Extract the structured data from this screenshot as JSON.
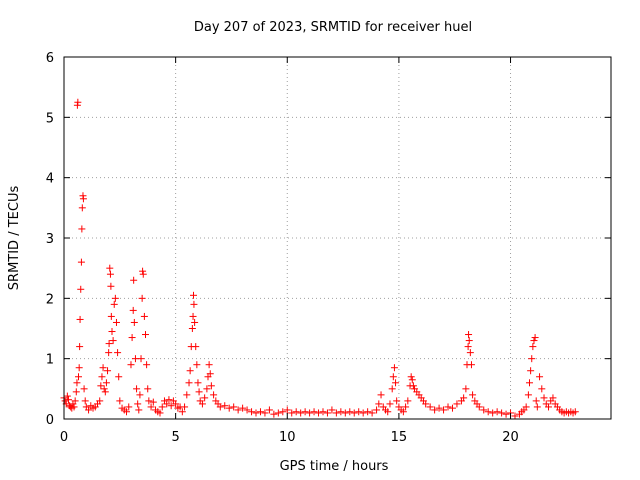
{
  "chart_data": {
    "type": "scatter",
    "title": "Day 207 of 2023, SRMTID for receiver huel",
    "xlabel": "GPS time / hours",
    "ylabel": "SRMTID / TECUs",
    "xlim": [
      0,
      24.5
    ],
    "ylim": [
      0,
      6
    ],
    "xticks": [
      0,
      5,
      10,
      15,
      20
    ],
    "yticks": [
      0,
      1,
      2,
      3,
      4,
      5,
      6
    ],
    "grid": true,
    "marker": "+",
    "color": "#ff0000",
    "series": [
      {
        "name": "SRMTID",
        "points": [
          [
            0.0,
            0.35
          ],
          [
            0.05,
            0.3
          ],
          [
            0.1,
            0.25
          ],
          [
            0.15,
            0.38
          ],
          [
            0.2,
            0.32
          ],
          [
            0.25,
            0.22
          ],
          [
            0.3,
            0.2
          ],
          [
            0.35,
            0.18
          ],
          [
            0.4,
            0.25
          ],
          [
            0.45,
            0.2
          ],
          [
            0.5,
            0.3
          ],
          [
            0.55,
            0.45
          ],
          [
            0.58,
            0.6
          ],
          [
            0.6,
            5.2
          ],
          [
            0.62,
            5.25
          ],
          [
            0.65,
            0.7
          ],
          [
            0.68,
            0.85
          ],
          [
            0.7,
            1.2
          ],
          [
            0.72,
            1.65
          ],
          [
            0.75,
            2.15
          ],
          [
            0.78,
            2.6
          ],
          [
            0.8,
            3.15
          ],
          [
            0.82,
            3.5
          ],
          [
            0.85,
            3.7
          ],
          [
            0.87,
            3.65
          ],
          [
            0.9,
            0.5
          ],
          [
            0.95,
            0.3
          ],
          [
            1.0,
            0.2
          ],
          [
            1.1,
            0.15
          ],
          [
            1.2,
            0.22
          ],
          [
            1.3,
            0.18
          ],
          [
            1.4,
            0.2
          ],
          [
            1.5,
            0.25
          ],
          [
            1.6,
            0.3
          ],
          [
            1.65,
            0.55
          ],
          [
            1.7,
            0.7
          ],
          [
            1.75,
            0.85
          ],
          [
            1.8,
            0.5
          ],
          [
            1.85,
            0.45
          ],
          [
            1.9,
            0.6
          ],
          [
            1.95,
            0.8
          ],
          [
            2.0,
            1.1
          ],
          [
            2.02,
            1.25
          ],
          [
            2.05,
            2.5
          ],
          [
            2.08,
            2.4
          ],
          [
            2.1,
            2.2
          ],
          [
            2.12,
            1.7
          ],
          [
            2.15,
            1.45
          ],
          [
            2.2,
            1.3
          ],
          [
            2.25,
            1.9
          ],
          [
            2.3,
            2.0
          ],
          [
            2.35,
            1.6
          ],
          [
            2.4,
            1.1
          ],
          [
            2.45,
            0.7
          ],
          [
            2.5,
            0.3
          ],
          [
            2.6,
            0.18
          ],
          [
            2.7,
            0.15
          ],
          [
            2.8,
            0.12
          ],
          [
            2.9,
            0.2
          ],
          [
            3.0,
            0.9
          ],
          [
            3.05,
            1.35
          ],
          [
            3.1,
            1.8
          ],
          [
            3.12,
            2.3
          ],
          [
            3.15,
            1.6
          ],
          [
            3.2,
            1.0
          ],
          [
            3.25,
            0.5
          ],
          [
            3.3,
            0.25
          ],
          [
            3.35,
            0.15
          ],
          [
            3.4,
            0.4
          ],
          [
            3.45,
            1.0
          ],
          [
            3.5,
            2.0
          ],
          [
            3.52,
            2.45
          ],
          [
            3.55,
            2.4
          ],
          [
            3.6,
            1.7
          ],
          [
            3.65,
            1.4
          ],
          [
            3.7,
            0.9
          ],
          [
            3.75,
            0.5
          ],
          [
            3.8,
            0.3
          ],
          [
            3.9,
            0.2
          ],
          [
            4.0,
            0.28
          ],
          [
            4.1,
            0.15
          ],
          [
            4.2,
            0.12
          ],
          [
            4.3,
            0.1
          ],
          [
            4.4,
            0.2
          ],
          [
            4.5,
            0.3
          ],
          [
            4.6,
            0.25
          ],
          [
            4.7,
            0.32
          ],
          [
            4.8,
            0.22
          ],
          [
            4.9,
            0.3
          ],
          [
            5.0,
            0.25
          ],
          [
            5.1,
            0.18
          ],
          [
            5.2,
            0.2
          ],
          [
            5.3,
            0.12
          ],
          [
            5.4,
            0.2
          ],
          [
            5.5,
            0.4
          ],
          [
            5.6,
            0.6
          ],
          [
            5.65,
            0.8
          ],
          [
            5.7,
            1.2
          ],
          [
            5.75,
            1.5
          ],
          [
            5.78,
            1.7
          ],
          [
            5.8,
            2.05
          ],
          [
            5.82,
            1.9
          ],
          [
            5.85,
            1.6
          ],
          [
            5.9,
            1.2
          ],
          [
            5.95,
            0.9
          ],
          [
            6.0,
            0.6
          ],
          [
            6.05,
            0.45
          ],
          [
            6.1,
            0.3
          ],
          [
            6.2,
            0.25
          ],
          [
            6.3,
            0.35
          ],
          [
            6.4,
            0.5
          ],
          [
            6.45,
            0.7
          ],
          [
            6.5,
            0.9
          ],
          [
            6.55,
            0.75
          ],
          [
            6.6,
            0.55
          ],
          [
            6.7,
            0.4
          ],
          [
            6.8,
            0.3
          ],
          [
            6.9,
            0.25
          ],
          [
            7.0,
            0.2
          ],
          [
            7.2,
            0.22
          ],
          [
            7.4,
            0.18
          ],
          [
            7.6,
            0.2
          ],
          [
            7.8,
            0.15
          ],
          [
            8.0,
            0.18
          ],
          [
            8.2,
            0.15
          ],
          [
            8.4,
            0.12
          ],
          [
            8.6,
            0.1
          ],
          [
            8.8,
            0.12
          ],
          [
            9.0,
            0.1
          ],
          [
            9.2,
            0.15
          ],
          [
            9.4,
            0.08
          ],
          [
            9.6,
            0.1
          ],
          [
            9.8,
            0.12
          ],
          [
            10.0,
            0.15
          ],
          [
            10.2,
            0.1
          ],
          [
            10.4,
            0.12
          ],
          [
            10.6,
            0.1
          ],
          [
            10.8,
            0.12
          ],
          [
            11.0,
            0.1
          ],
          [
            11.2,
            0.12
          ],
          [
            11.4,
            0.1
          ],
          [
            11.6,
            0.12
          ],
          [
            11.8,
            0.1
          ],
          [
            12.0,
            0.15
          ],
          [
            12.2,
            0.1
          ],
          [
            12.4,
            0.12
          ],
          [
            12.6,
            0.1
          ],
          [
            12.8,
            0.12
          ],
          [
            13.0,
            0.1
          ],
          [
            13.2,
            0.12
          ],
          [
            13.4,
            0.1
          ],
          [
            13.6,
            0.12
          ],
          [
            13.8,
            0.1
          ],
          [
            14.0,
            0.15
          ],
          [
            14.1,
            0.25
          ],
          [
            14.2,
            0.4
          ],
          [
            14.3,
            0.2
          ],
          [
            14.4,
            0.15
          ],
          [
            14.5,
            0.12
          ],
          [
            14.6,
            0.25
          ],
          [
            14.7,
            0.5
          ],
          [
            14.75,
            0.7
          ],
          [
            14.8,
            0.85
          ],
          [
            14.85,
            0.6
          ],
          [
            14.9,
            0.3
          ],
          [
            15.0,
            0.2
          ],
          [
            15.1,
            0.15
          ],
          [
            15.2,
            0.12
          ],
          [
            15.3,
            0.2
          ],
          [
            15.4,
            0.3
          ],
          [
            15.5,
            0.55
          ],
          [
            15.55,
            0.7
          ],
          [
            15.6,
            0.65
          ],
          [
            15.65,
            0.55
          ],
          [
            15.7,
            0.5
          ],
          [
            15.8,
            0.45
          ],
          [
            15.9,
            0.4
          ],
          [
            16.0,
            0.35
          ],
          [
            16.1,
            0.3
          ],
          [
            16.2,
            0.25
          ],
          [
            16.4,
            0.2
          ],
          [
            16.6,
            0.15
          ],
          [
            16.8,
            0.18
          ],
          [
            17.0,
            0.15
          ],
          [
            17.2,
            0.2
          ],
          [
            17.4,
            0.18
          ],
          [
            17.6,
            0.25
          ],
          [
            17.8,
            0.3
          ],
          [
            17.9,
            0.35
          ],
          [
            18.0,
            0.5
          ],
          [
            18.05,
            0.9
          ],
          [
            18.1,
            1.2
          ],
          [
            18.12,
            1.4
          ],
          [
            18.15,
            1.3
          ],
          [
            18.2,
            1.1
          ],
          [
            18.25,
            0.9
          ],
          [
            18.3,
            0.4
          ],
          [
            18.4,
            0.3
          ],
          [
            18.5,
            0.25
          ],
          [
            18.6,
            0.2
          ],
          [
            18.8,
            0.15
          ],
          [
            19.0,
            0.12
          ],
          [
            19.2,
            0.1
          ],
          [
            19.4,
            0.12
          ],
          [
            19.6,
            0.1
          ],
          [
            19.8,
            0.08
          ],
          [
            20.0,
            0.1
          ],
          [
            20.2,
            0.05
          ],
          [
            20.4,
            0.08
          ],
          [
            20.5,
            0.12
          ],
          [
            20.6,
            0.15
          ],
          [
            20.7,
            0.2
          ],
          [
            20.8,
            0.4
          ],
          [
            20.85,
            0.6
          ],
          [
            20.9,
            0.8
          ],
          [
            20.95,
            1.0
          ],
          [
            21.0,
            1.2
          ],
          [
            21.05,
            1.3
          ],
          [
            21.1,
            1.35
          ],
          [
            21.15,
            0.3
          ],
          [
            21.2,
            0.2
          ],
          [
            21.3,
            0.7
          ],
          [
            21.4,
            0.5
          ],
          [
            21.5,
            0.35
          ],
          [
            21.6,
            0.25
          ],
          [
            21.7,
            0.2
          ],
          [
            21.8,
            0.3
          ],
          [
            21.9,
            0.35
          ],
          [
            22.0,
            0.25
          ],
          [
            22.1,
            0.2
          ],
          [
            22.2,
            0.15
          ],
          [
            22.3,
            0.12
          ],
          [
            22.4,
            0.1
          ],
          [
            22.5,
            0.12
          ],
          [
            22.6,
            0.1
          ],
          [
            22.7,
            0.12
          ],
          [
            22.8,
            0.1
          ],
          [
            22.9,
            0.12
          ]
        ]
      }
    ]
  }
}
